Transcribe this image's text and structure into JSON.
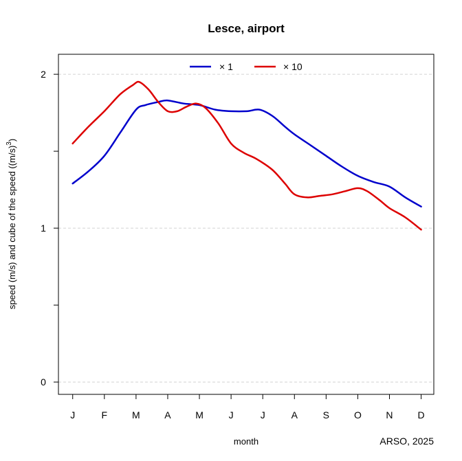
{
  "chart_data": {
    "type": "line",
    "title": "Lesce, airport",
    "xlabel": "month",
    "ylabel_main": "speed (m/s) and cube of the speed ((m/s)",
    "ylabel_sup": "3",
    "ylabel_close": ")",
    "credit": "ARSO, 2025",
    "categories": [
      "J",
      "F",
      "M",
      "A",
      "M",
      "J",
      "J",
      "A",
      "S",
      "O",
      "N",
      "D"
    ],
    "yticks": [
      0,
      1,
      2
    ],
    "ylim": [
      -0.08,
      2.13
    ],
    "grid": "horizontal dashed at y ticks",
    "legend_position": "top-center",
    "series": [
      {
        "name": "× 1",
        "color": "#0000cc",
        "points": [
          [
            1,
            1.29
          ],
          [
            1.5,
            1.37
          ],
          [
            2,
            1.47
          ],
          [
            2.5,
            1.62
          ],
          [
            3,
            1.77
          ],
          [
            3.3,
            1.8
          ],
          [
            3.7,
            1.82
          ],
          [
            4,
            1.83
          ],
          [
            4.5,
            1.81
          ],
          [
            5,
            1.8
          ],
          [
            5.5,
            1.77
          ],
          [
            6,
            1.76
          ],
          [
            6.5,
            1.76
          ],
          [
            6.9,
            1.77
          ],
          [
            7.3,
            1.73
          ],
          [
            7.7,
            1.66
          ],
          [
            8,
            1.61
          ],
          [
            8.5,
            1.54
          ],
          [
            9,
            1.47
          ],
          [
            9.5,
            1.4
          ],
          [
            10,
            1.34
          ],
          [
            10.5,
            1.3
          ],
          [
            11,
            1.27
          ],
          [
            11.5,
            1.2
          ],
          [
            12,
            1.14
          ]
        ]
      },
      {
        "name": "× 10",
        "color": "#dd0000",
        "points": [
          [
            1,
            1.55
          ],
          [
            1.5,
            1.66
          ],
          [
            2,
            1.76
          ],
          [
            2.5,
            1.87
          ],
          [
            2.9,
            1.93
          ],
          [
            3.1,
            1.95
          ],
          [
            3.4,
            1.9
          ],
          [
            3.7,
            1.82
          ],
          [
            4,
            1.76
          ],
          [
            4.3,
            1.76
          ],
          [
            4.6,
            1.79
          ],
          [
            4.9,
            1.81
          ],
          [
            5.2,
            1.78
          ],
          [
            5.6,
            1.68
          ],
          [
            6,
            1.55
          ],
          [
            6.4,
            1.49
          ],
          [
            6.8,
            1.45
          ],
          [
            7.3,
            1.38
          ],
          [
            7.7,
            1.29
          ],
          [
            8,
            1.22
          ],
          [
            8.4,
            1.2
          ],
          [
            8.8,
            1.21
          ],
          [
            9.2,
            1.22
          ],
          [
            9.6,
            1.24
          ],
          [
            10,
            1.26
          ],
          [
            10.3,
            1.24
          ],
          [
            10.7,
            1.18
          ],
          [
            11,
            1.13
          ],
          [
            11.5,
            1.07
          ],
          [
            12,
            0.99
          ]
        ]
      }
    ]
  }
}
